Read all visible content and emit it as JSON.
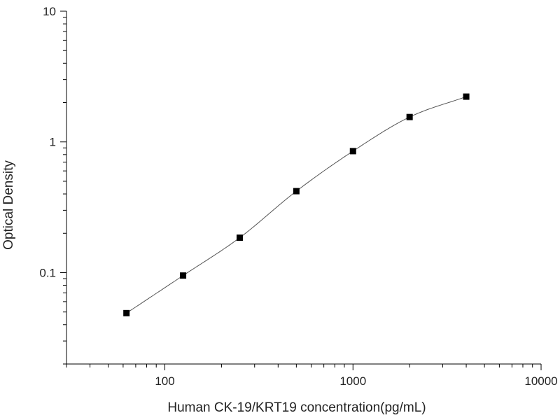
{
  "chart_data": {
    "type": "scatter",
    "title": "",
    "xlabel": "Human CK-19/KRT19 concentration(pg/mL)",
    "ylabel": "Optical Density",
    "xscale": "log",
    "yscale": "log",
    "xlim": [
      30,
      10000
    ],
    "ylim": [
      0.02,
      10
    ],
    "x_ticks": [
      100,
      1000,
      10000
    ],
    "x_tick_labels": [
      "100",
      "1000",
      "10000"
    ],
    "y_ticks": [
      0.1,
      1,
      10
    ],
    "y_tick_labels": [
      "0.1",
      "1",
      "10"
    ],
    "grid": false,
    "legend": "none",
    "series": [
      {
        "marker": "square",
        "color": "#000000",
        "x": [
          62.5,
          125,
          250,
          500,
          1000,
          2000,
          4000
        ],
        "y": [
          0.049,
          0.095,
          0.185,
          0.42,
          0.85,
          1.55,
          2.22
        ]
      }
    ],
    "fit_curve": {
      "style": "smooth",
      "color": "#555555"
    }
  }
}
